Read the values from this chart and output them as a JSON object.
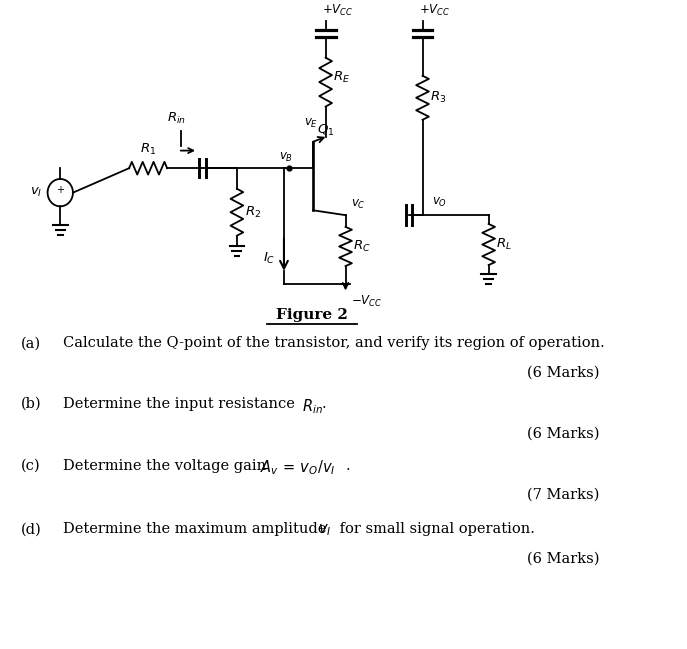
{
  "title": "Figure 2",
  "bg_color": "#ffffff",
  "text_color": "#000000",
  "questions": [
    {
      "label": "(a)",
      "text": "Calculate the Q-point of the transistor, and verify its region of operation.",
      "marks": "(6 Marks)"
    },
    {
      "label": "(b)",
      "marks": "(6 Marks)"
    },
    {
      "label": "(c)",
      "marks": "(7 Marks)"
    },
    {
      "label": "(d)",
      "text": "Determine the maximum amplitude ",
      "marks": "(6 Marks)"
    }
  ]
}
